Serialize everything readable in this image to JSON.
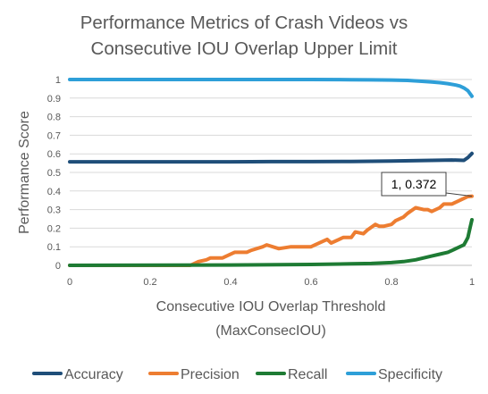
{
  "chart_data": {
    "type": "line",
    "title_lines": [
      "Performance Metrics of Crash Videos vs",
      "Consecutive IOU Overlap Upper Limit"
    ],
    "xlabel_lines": [
      "Consecutive IOU Overlap Threshold",
      "(MaxConsecIOU)"
    ],
    "ylabel": "Performance Score",
    "xlim": [
      0,
      1
    ],
    "ylim": [
      0,
      1
    ],
    "x_ticks": [
      "0",
      "0.2",
      "0.4",
      "0.6",
      "0.8",
      "1"
    ],
    "y_ticks": [
      "0",
      "0.1",
      "0.2",
      "0.3",
      "0.4",
      "0.5",
      "0.6",
      "0.7",
      "0.8",
      "0.9",
      "1"
    ],
    "grid": true,
    "legend_position": "bottom",
    "series": [
      {
        "name": "Accuracy",
        "color": "#1f4e79",
        "x": [
          0,
          0.1,
          0.2,
          0.3,
          0.4,
          0.5,
          0.6,
          0.7,
          0.8,
          0.85,
          0.9,
          0.95,
          0.98,
          0.99,
          1.0
        ],
        "y": [
          0.557,
          0.557,
          0.557,
          0.557,
          0.557,
          0.558,
          0.558,
          0.559,
          0.561,
          0.563,
          0.565,
          0.567,
          0.565,
          0.58,
          0.602
        ]
      },
      {
        "name": "Precision",
        "color": "#ed7d31",
        "x": [
          0,
          0.29,
          0.3,
          0.31,
          0.32,
          0.34,
          0.35,
          0.38,
          0.39,
          0.41,
          0.44,
          0.45,
          0.48,
          0.49,
          0.52,
          0.55,
          0.56,
          0.6,
          0.61,
          0.64,
          0.65,
          0.67,
          0.68,
          0.7,
          0.71,
          0.73,
          0.74,
          0.76,
          0.77,
          0.78,
          0.8,
          0.81,
          0.83,
          0.84,
          0.86,
          0.88,
          0.89,
          0.9,
          0.92,
          0.93,
          0.95,
          0.96,
          0.97,
          0.98,
          0.99,
          1.0
        ],
        "y": [
          0.0,
          0.0,
          0.0,
          0.01,
          0.02,
          0.03,
          0.04,
          0.04,
          0.05,
          0.07,
          0.07,
          0.08,
          0.1,
          0.11,
          0.09,
          0.1,
          0.1,
          0.1,
          0.11,
          0.14,
          0.12,
          0.14,
          0.15,
          0.15,
          0.18,
          0.17,
          0.19,
          0.22,
          0.21,
          0.21,
          0.22,
          0.24,
          0.26,
          0.28,
          0.31,
          0.3,
          0.3,
          0.29,
          0.31,
          0.33,
          0.33,
          0.34,
          0.35,
          0.36,
          0.37,
          0.372
        ]
      },
      {
        "name": "Recall",
        "color": "#1e7b34",
        "x": [
          0,
          0.4,
          0.6,
          0.7,
          0.75,
          0.8,
          0.83,
          0.86,
          0.88,
          0.9,
          0.92,
          0.94,
          0.95,
          0.96,
          0.97,
          0.98,
          0.985,
          0.99,
          0.995,
          1.0
        ],
        "y": [
          0.0,
          0.002,
          0.005,
          0.008,
          0.01,
          0.015,
          0.02,
          0.03,
          0.04,
          0.05,
          0.06,
          0.07,
          0.08,
          0.09,
          0.1,
          0.11,
          0.13,
          0.15,
          0.2,
          0.245
        ]
      },
      {
        "name": "Specificity",
        "color": "#2e9fd8",
        "x": [
          0,
          0.2,
          0.4,
          0.6,
          0.7,
          0.75,
          0.8,
          0.84,
          0.88,
          0.9,
          0.92,
          0.94,
          0.96,
          0.97,
          0.98,
          0.99,
          1.0
        ],
        "y": [
          1.0,
          1.0,
          1.0,
          1.0,
          0.999,
          0.998,
          0.997,
          0.995,
          0.99,
          0.987,
          0.983,
          0.978,
          0.97,
          0.965,
          0.955,
          0.94,
          0.91
        ]
      }
    ],
    "annotation": {
      "text": "1, 0.372",
      "x": 1.0,
      "y": 0.372
    }
  }
}
